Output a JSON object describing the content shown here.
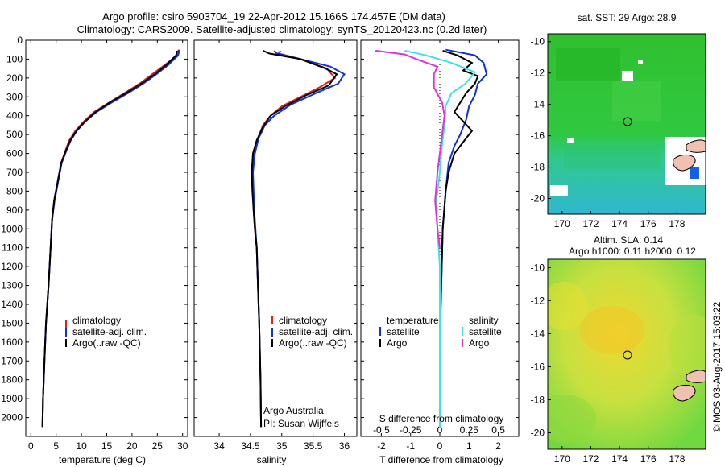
{
  "header": {
    "title_line1": "Argo profile: csiro 5903704_19 22-Apr-2012 15.166S 174.457E (DM data)",
    "title_line2": "Climatology: CARS2009. Satellite-adjusted climatology: synTS_20120423.nc (0.2d later)"
  },
  "footer": {
    "argo_line1": "Argo Australia",
    "argo_line2": "PI: Susan Wijffels",
    "watermark": "©IMOS 03-Aug-2017 15:03:22"
  },
  "colors": {
    "climatology": "#e02020",
    "satellite": "#1030e0",
    "argo": "#000000",
    "salinity_satellite": "#40e0e8",
    "salinity_argo": "#e030e0"
  },
  "chart_data": [
    {
      "type": "line",
      "id": "temperature",
      "xlabel": "temperature (deg C)",
      "ylim": [
        2100,
        0
      ],
      "xlim": [
        -1,
        31
      ],
      "xticks": [
        0,
        5,
        10,
        15,
        20,
        25,
        30
      ],
      "yticks": [
        0,
        100,
        200,
        300,
        400,
        500,
        600,
        700,
        800,
        900,
        1000,
        1100,
        1200,
        1300,
        1400,
        1500,
        1600,
        1700,
        1800,
        1900,
        2000
      ],
      "legend": [
        "climatology",
        "satellite-adj. clim.",
        "Argo(..raw -QC)"
      ],
      "series": [
        {
          "name": "climatology",
          "color_key": "climatology",
          "points": [
            [
              29.2,
              50
            ],
            [
              29.0,
              80
            ],
            [
              26.5,
              130
            ],
            [
              24.0,
              180
            ],
            [
              21.5,
              230
            ],
            [
              18.5,
              280
            ],
            [
              15.5,
              330
            ],
            [
              12.5,
              380
            ],
            [
              10.5,
              430
            ],
            [
              8.8,
              480
            ],
            [
              7.6,
              530
            ],
            [
              6.9,
              580
            ],
            [
              6.0,
              650
            ],
            [
              5.3,
              750
            ],
            [
              4.6,
              850
            ],
            [
              4.2,
              950
            ],
            [
              3.9,
              1100
            ],
            [
              3.5,
              1300
            ],
            [
              3.0,
              1500
            ],
            [
              2.7,
              1700
            ],
            [
              2.4,
              1900
            ],
            [
              2.3,
              2050
            ]
          ]
        },
        {
          "name": "satellite-adj. clim.",
          "color_key": "satellite",
          "points": [
            [
              29.4,
              50
            ],
            [
              29.1,
              80
            ],
            [
              27.2,
              130
            ],
            [
              24.8,
              180
            ],
            [
              22.2,
              230
            ],
            [
              19.2,
              280
            ],
            [
              16.0,
              330
            ],
            [
              13.0,
              380
            ],
            [
              10.8,
              430
            ],
            [
              9.1,
              480
            ],
            [
              7.9,
              530
            ],
            [
              7.1,
              580
            ],
            [
              6.1,
              650
            ],
            [
              5.4,
              750
            ],
            [
              4.7,
              850
            ],
            [
              4.2,
              950
            ],
            [
              3.9,
              1100
            ],
            [
              3.5,
              1300
            ],
            [
              3.0,
              1500
            ],
            [
              2.7,
              1700
            ],
            [
              2.4,
              1900
            ],
            [
              2.3,
              2050
            ]
          ]
        },
        {
          "name": "Argo(..raw -QC)",
          "color_key": "argo",
          "points": [
            [
              28.9,
              55
            ],
            [
              28.7,
              80
            ],
            [
              26.8,
              130
            ],
            [
              24.5,
              180
            ],
            [
              21.8,
              230
            ],
            [
              18.8,
              280
            ],
            [
              15.6,
              330
            ],
            [
              12.8,
              380
            ],
            [
              10.7,
              430
            ],
            [
              9.0,
              480
            ],
            [
              7.8,
              530
            ],
            [
              7.0,
              580
            ],
            [
              6.0,
              650
            ],
            [
              5.3,
              750
            ],
            [
              4.6,
              850
            ],
            [
              4.2,
              950
            ],
            [
              3.9,
              1100
            ],
            [
              3.5,
              1300
            ],
            [
              3.0,
              1500
            ],
            [
              2.7,
              1700
            ],
            [
              2.4,
              1900
            ],
            [
              2.3,
              2050
            ]
          ]
        }
      ]
    },
    {
      "type": "line",
      "id": "salinity",
      "xlabel": "salinity",
      "ylim": [
        2100,
        0
      ],
      "xlim": [
        33.6,
        36.2
      ],
      "xticks": [
        34,
        34.5,
        35,
        35.5,
        36
      ],
      "xtick_labels": [
        "34",
        "34.5",
        "35",
        "35.5",
        "36"
      ],
      "legend": [
        "climatology",
        "satellite-adj. clim.",
        "Argo(..raw -QC)"
      ],
      "series": [
        {
          "name": "climatology",
          "color_key": "climatology",
          "points": [
            [
              34.98,
              55
            ],
            [
              34.95,
              70
            ],
            [
              35.3,
              100
            ],
            [
              35.72,
              150
            ],
            [
              35.85,
              200
            ],
            [
              35.6,
              250
            ],
            [
              35.3,
              300
            ],
            [
              35.0,
              350
            ],
            [
              34.82,
              400
            ],
            [
              34.7,
              450
            ],
            [
              34.62,
              520
            ],
            [
              34.56,
              600
            ],
            [
              34.53,
              700
            ],
            [
              34.54,
              800
            ],
            [
              34.55,
              900
            ],
            [
              34.57,
              1000
            ],
            [
              34.6,
              1100
            ],
            [
              34.62,
              1300
            ],
            [
              34.64,
              1500
            ],
            [
              34.66,
              1800
            ],
            [
              34.67,
              2050
            ]
          ]
        },
        {
          "name": "satellite-adj. clim.",
          "color_key": "satellite",
          "points": [
            [
              34.88,
              55
            ],
            [
              34.92,
              70
            ],
            [
              35.3,
              100
            ],
            [
              35.78,
              140
            ],
            [
              36.0,
              180
            ],
            [
              35.9,
              230
            ],
            [
              35.55,
              280
            ],
            [
              35.15,
              340
            ],
            [
              34.88,
              400
            ],
            [
              34.73,
              450
            ],
            [
              34.63,
              520
            ],
            [
              34.57,
              600
            ],
            [
              34.54,
              700
            ],
            [
              34.55,
              800
            ],
            [
              34.56,
              900
            ],
            [
              34.58,
              1000
            ],
            [
              34.6,
              1100
            ],
            [
              34.62,
              1300
            ],
            [
              34.64,
              1500
            ],
            [
              34.66,
              1800
            ],
            [
              34.67,
              2050
            ]
          ]
        },
        {
          "name": "Argo(..raw -QC)",
          "color_key": "argo",
          "points": [
            [
              34.7,
              55
            ],
            [
              34.8,
              70
            ],
            [
              35.3,
              100
            ],
            [
              35.7,
              150
            ],
            [
              35.88,
              180
            ],
            [
              35.75,
              240
            ],
            [
              35.4,
              290
            ],
            [
              35.05,
              350
            ],
            [
              34.82,
              400
            ],
            [
              34.7,
              460
            ],
            [
              34.6,
              530
            ],
            [
              34.54,
              600
            ],
            [
              34.52,
              700
            ],
            [
              34.53,
              800
            ],
            [
              34.55,
              900
            ],
            [
              34.57,
              1000
            ],
            [
              34.6,
              1100
            ],
            [
              34.62,
              1300
            ],
            [
              34.64,
              1500
            ],
            [
              34.66,
              1800
            ],
            [
              34.67,
              2050
            ]
          ]
        }
      ]
    },
    {
      "type": "line",
      "id": "difference",
      "xlabel": "T difference from climatology",
      "top_axis_label": "S difference from climatology",
      "ylim": [
        2100,
        0
      ],
      "xlim": [
        -2.7,
        2.7
      ],
      "xticks": [
        -2,
        -1,
        0,
        1,
        2
      ],
      "top_ticks": [
        -0.5,
        -0.25,
        0,
        0.25,
        0.5
      ],
      "top_tick_labels": [
        "-0.5",
        "-0.25",
        "0",
        "0.25",
        "0.5"
      ],
      "legend_temperature": {
        "heading": "temperature",
        "items": [
          "satellite",
          "Argo"
        ]
      },
      "legend_salinity": {
        "heading": "salinity",
        "items": [
          "satellite",
          "Argo"
        ]
      },
      "series": [
        {
          "name": "satellite",
          "group": "temperature",
          "color_key": "satellite",
          "points": [
            [
              0.2,
              50
            ],
            [
              1.2,
              80
            ],
            [
              1.5,
              120
            ],
            [
              1.6,
              180
            ],
            [
              1.3,
              230
            ],
            [
              1.2,
              290
            ],
            [
              1.0,
              350
            ],
            [
              0.9,
              420
            ],
            [
              0.7,
              500
            ],
            [
              0.5,
              560
            ],
            [
              0.3,
              650
            ],
            [
              0.2,
              800
            ],
            [
              0.1,
              1000
            ],
            [
              0.05,
              1300
            ],
            [
              0.0,
              1600
            ],
            [
              0.0,
              2050
            ]
          ]
        },
        {
          "name": "Argo",
          "group": "temperature",
          "color_key": "argo",
          "points": [
            [
              0.1,
              55
            ],
            [
              0.6,
              80
            ],
            [
              1.1,
              120
            ],
            [
              0.8,
              160
            ],
            [
              1.3,
              190
            ],
            [
              1.2,
              230
            ],
            [
              0.9,
              280
            ],
            [
              0.7,
              330
            ],
            [
              0.5,
              380
            ],
            [
              0.8,
              430
            ],
            [
              1.1,
              480
            ],
            [
              0.8,
              540
            ],
            [
              0.5,
              600
            ],
            [
              0.3,
              700
            ],
            [
              0.2,
              800
            ],
            [
              0.1,
              1000
            ],
            [
              0.05,
              1300
            ],
            [
              0.0,
              1600
            ],
            [
              0.0,
              2050
            ]
          ]
        },
        {
          "name": "satellite",
          "group": "salinity",
          "color_key": "salinity_satellite",
          "points": [
            [
              -0.3,
              55
            ],
            [
              -0.12,
              80
            ],
            [
              0.1,
              120
            ],
            [
              0.3,
              170
            ],
            [
              0.22,
              230
            ],
            [
              0.1,
              280
            ],
            [
              0.05,
              350
            ],
            [
              0.04,
              450
            ],
            [
              0.02,
              550
            ],
            [
              0.0,
              700
            ],
            [
              -0.03,
              850
            ],
            [
              -0.02,
              1000
            ],
            [
              0.0,
              1200
            ],
            [
              0.0,
              1500
            ],
            [
              0.0,
              2050
            ]
          ]
        },
        {
          "name": "Argo",
          "group": "salinity",
          "color_key": "salinity_argo",
          "points": [
            [
              -0.55,
              55
            ],
            [
              -0.3,
              75
            ],
            [
              -0.2,
              100
            ],
            [
              -0.02,
              140
            ],
            [
              -0.05,
              180
            ],
            [
              -0.05,
              250
            ],
            [
              0.02,
              330
            ],
            [
              0.04,
              400
            ],
            [
              0.02,
              500
            ],
            [
              0.0,
              600
            ],
            [
              -0.02,
              700
            ],
            [
              -0.04,
              850
            ],
            [
              -0.02,
              1000
            ],
            [
              0.0,
              1100
            ]
          ]
        }
      ]
    },
    {
      "type": "heatmap",
      "id": "sst_map",
      "title": "sat. SST: 29 Argo: 28.9",
      "xlim": [
        169,
        180
      ],
      "ylim": [
        -21,
        -9.5
      ],
      "xticks": [
        170,
        172,
        174,
        176,
        178
      ],
      "yticks": [
        -10,
        -12,
        -14,
        -16,
        -18,
        -20
      ],
      "argo_position": [
        174.457,
        -15.166
      ]
    },
    {
      "type": "heatmap",
      "id": "sla_map",
      "title": "Altim. SLA: 0.14",
      "subtitle": "Argo h1000: 0.11 h2000: 0.12",
      "xlim": [
        169,
        180
      ],
      "ylim": [
        -21,
        -9.5
      ],
      "xticks": [
        170,
        172,
        174,
        176,
        178
      ],
      "yticks": [
        -10,
        -12,
        -14,
        -16,
        -18,
        -20
      ],
      "argo_position": [
        174.457,
        -15.166
      ]
    }
  ]
}
